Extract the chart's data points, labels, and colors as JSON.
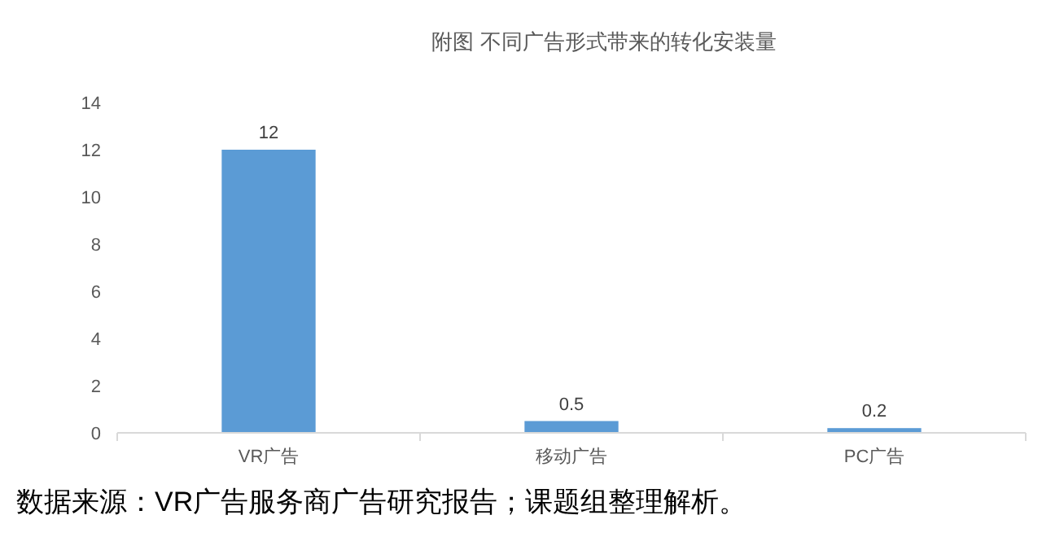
{
  "chart_data": {
    "type": "bar",
    "title": "附图  不同广告形式带来的转化安装量",
    "categories": [
      "VR广告",
      "移动广告",
      "PC广告"
    ],
    "values": [
      12,
      0.5,
      0.2
    ],
    "color": "#5b9bd5",
    "data_labels": true,
    "ylim": [
      0,
      14
    ],
    "yticks": [
      0,
      2,
      4,
      6,
      8,
      10,
      12,
      14
    ],
    "grid": false,
    "annotations": [
      "数据来源：VR广告服务商广告研究报告；课题组整理解析。"
    ]
  }
}
